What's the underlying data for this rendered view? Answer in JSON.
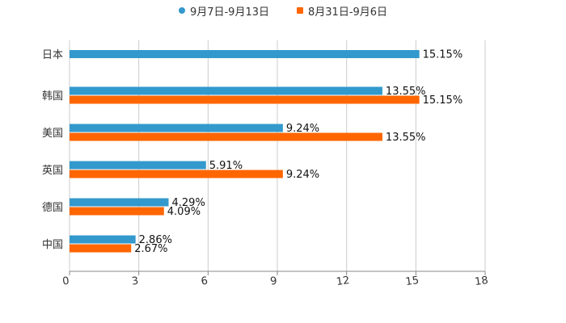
{
  "legend": [
    {
      "label": "9月7日-9月13日",
      "color": "#3399cc",
      "shape": "circle"
    },
    {
      "label": "8月31日-9月6日",
      "color": "#ff6600",
      "shape": "square"
    }
  ],
  "chart_data": {
    "type": "bar",
    "orientation": "horizontal",
    "title": "",
    "xlabel": "",
    "ylabel": "",
    "categories": [
      "日本",
      "韩国",
      "美国",
      "英国",
      "德国",
      "中国"
    ],
    "series": [
      {
        "name": "9月7日-9月13日",
        "color": "#3399cc",
        "values": [
          15.15,
          13.55,
          9.24,
          5.91,
          4.29,
          2.86
        ],
        "labels": [
          "15.15%",
          "13.55%",
          "9.24%",
          "5.91%",
          "4.29%",
          "2.86%"
        ]
      },
      {
        "name": "8月31日-9月6日",
        "color": "#ff6600",
        "values": [
          null,
          15.15,
          13.55,
          9.24,
          4.09,
          2.67
        ],
        "labels": [
          "",
          "15.15%",
          "13.55%",
          "9.24%",
          "4.09%",
          "2.67%"
        ]
      }
    ],
    "xlim": [
      0,
      18
    ],
    "xticks": [
      "0",
      "3",
      "6",
      "9",
      "12",
      "15",
      "18"
    ],
    "grid": true,
    "legend_position": "top"
  }
}
